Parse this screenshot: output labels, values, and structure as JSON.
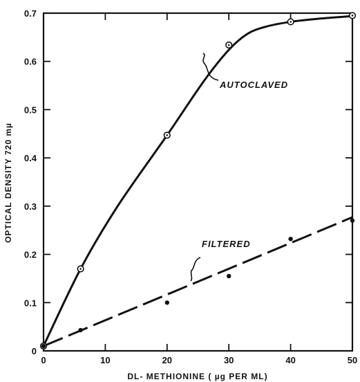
{
  "chart_data": {
    "type": "line",
    "title": "",
    "xlabel": "DL- METHIONINE ( µg PER ML)",
    "ylabel": "OPTICAL DENSITY 720 mµ",
    "xlim": [
      0,
      50
    ],
    "ylim": [
      0,
      0.7
    ],
    "x_ticks": [
      "0",
      "10",
      "20",
      "30",
      "40",
      "50"
    ],
    "y_ticks": [
      "0",
      "0.1",
      "0.2",
      "0.3",
      "0.4",
      "0.5",
      "0.6",
      "0.7"
    ],
    "grid": false,
    "legend": "none",
    "series": [
      {
        "name": "AUTOCLAVED",
        "marker": "open-circle-dot",
        "line_style": "solid",
        "points": [
          {
            "x": 0,
            "y": 0.01
          },
          {
            "x": 6,
            "y": 0.17
          },
          {
            "x": 20,
            "y": 0.447
          },
          {
            "x": 30,
            "y": 0.634
          },
          {
            "x": 40,
            "y": 0.682
          },
          {
            "x": 50,
            "y": 0.695
          }
        ],
        "curve": [
          {
            "x": 0,
            "y": 0.01
          },
          {
            "x": 6,
            "y": 0.17
          },
          {
            "x": 12,
            "y": 0.3
          },
          {
            "x": 20,
            "y": 0.447
          },
          {
            "x": 26,
            "y": 0.56
          },
          {
            "x": 30,
            "y": 0.624
          },
          {
            "x": 33,
            "y": 0.657
          },
          {
            "x": 36,
            "y": 0.672
          },
          {
            "x": 40,
            "y": 0.682
          },
          {
            "x": 45,
            "y": 0.689
          },
          {
            "x": 50,
            "y": 0.694
          }
        ]
      },
      {
        "name": "FILTERED",
        "marker": "filled-dot",
        "line_style": "dashed",
        "points": [
          {
            "x": 0,
            "y": 0.01
          },
          {
            "x": 6,
            "y": 0.043
          },
          {
            "x": 20,
            "y": 0.1
          },
          {
            "x": 30,
            "y": 0.155
          },
          {
            "x": 40,
            "y": 0.232
          },
          {
            "x": 50,
            "y": 0.27
          }
        ],
        "curve": [
          {
            "x": 0,
            "y": 0.01
          },
          {
            "x": 50,
            "y": 0.277
          }
        ]
      }
    ]
  }
}
